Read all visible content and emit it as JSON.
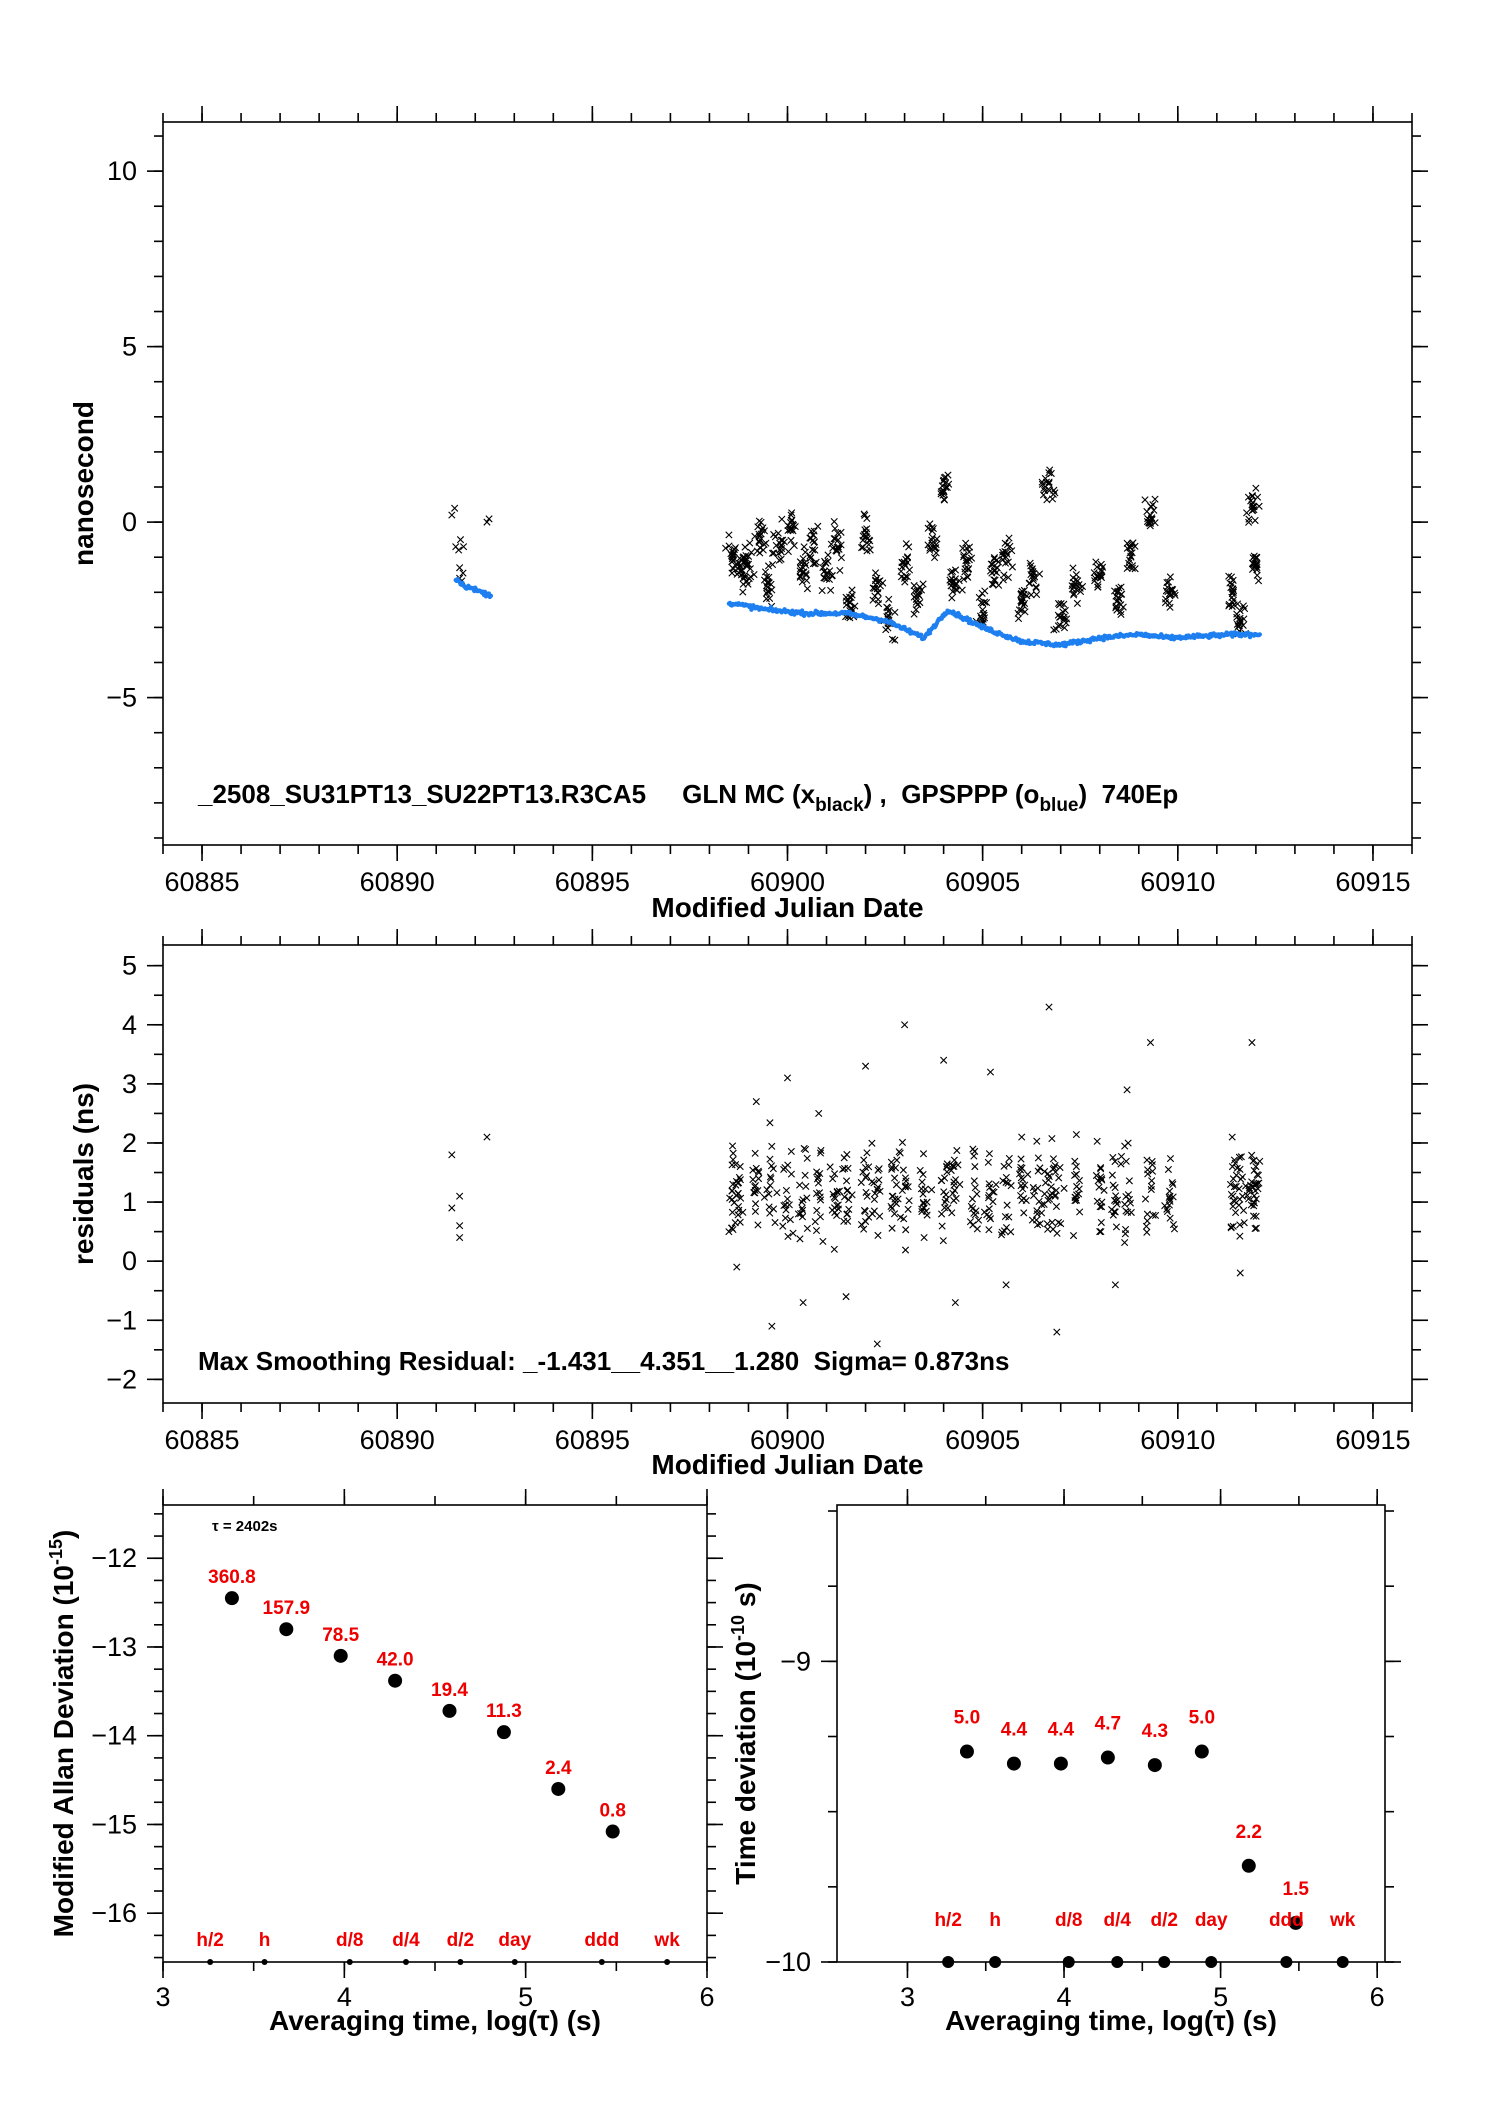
{
  "colors": {
    "black_marker": "#000000",
    "blue_marker": "#1e7ff0",
    "red_label": "#ee0000"
  },
  "chart_data": [
    {
      "id": "time-series",
      "type": "scatter",
      "xlabel": "Modified Julian Date",
      "ylabel": "nanosecond",
      "xlim": [
        60884,
        60916
      ],
      "ylim": [
        -9.2,
        11.4
      ],
      "xticks": [
        60885,
        60890,
        60895,
        60900,
        60905,
        60910,
        60915
      ],
      "yticks": [
        10,
        5,
        0,
        -5
      ],
      "annotation": {
        "prefix": "_2508_SU31PT13_SU22PT13.R3CA5     GLN MC (x",
        "sub1": "black",
        "mid": ") ,  GPSPPP (o",
        "sub2": "blue",
        "suffix": ")  740Ep"
      },
      "series": [
        {
          "name": "GLN MC",
          "marker": "x",
          "color": "#000000",
          "points": [
            [
              60891.4,
              0.2
            ],
            [
              60891.5,
              -0.7
            ],
            [
              60891.6,
              -1.3
            ],
            [
              60891.6,
              -1.6
            ],
            [
              60891.7,
              -0.7
            ],
            [
              60892.3,
              0.0
            ],
            [
              60898.6,
              -1.0
            ],
            [
              60898.8,
              -1.4
            ],
            [
              60899.0,
              -1.2
            ],
            [
              60899.3,
              -0.5
            ],
            [
              60899.5,
              -1.7
            ],
            [
              60899.8,
              -0.6
            ],
            [
              60900.1,
              -0.2
            ],
            [
              60900.4,
              -1.3
            ],
            [
              60900.7,
              -0.8
            ],
            [
              60901.0,
              -1.5
            ],
            [
              60901.3,
              -0.7
            ],
            [
              60901.6,
              -2.3
            ],
            [
              60902.0,
              -0.4
            ],
            [
              60902.3,
              -1.9
            ],
            [
              60902.6,
              -2.8
            ],
            [
              60903.0,
              -1.2
            ],
            [
              60903.3,
              -2.2
            ],
            [
              60903.7,
              -0.6
            ],
            [
              60904.0,
              0.9
            ],
            [
              60904.3,
              -1.8
            ],
            [
              60904.6,
              -1.1
            ],
            [
              60905.0,
              -2.5
            ],
            [
              60905.3,
              -1.4
            ],
            [
              60905.6,
              -1.0
            ],
            [
              60906.0,
              -2.3
            ],
            [
              60906.3,
              -1.6
            ],
            [
              60906.7,
              1.1
            ],
            [
              60907.0,
              -2.7
            ],
            [
              60907.4,
              -1.8
            ],
            [
              60908.0,
              -1.5
            ],
            [
              60908.5,
              -2.2
            ],
            [
              60908.8,
              -1.0
            ],
            [
              60909.3,
              0.2
            ],
            [
              60909.8,
              -2.1
            ],
            [
              60911.4,
              -2.0
            ],
            [
              60911.6,
              -2.8
            ],
            [
              60911.9,
              0.5
            ],
            [
              60912.0,
              -1.2
            ]
          ]
        },
        {
          "name": "GPSPPP",
          "marker": "o",
          "color": "#1e7ff0",
          "points": [
            [
              60891.5,
              -1.6
            ],
            [
              60891.7,
              -1.8
            ],
            [
              60892.4,
              -2.1
            ],
            [
              60898.5,
              -2.3
            ],
            [
              60899.5,
              -2.5
            ],
            [
              60900.5,
              -2.6
            ],
            [
              60901.5,
              -2.6
            ],
            [
              60902.5,
              -2.8
            ],
            [
              60903.5,
              -3.3
            ],
            [
              60904.1,
              -2.5
            ],
            [
              60905.0,
              -3.0
            ],
            [
              60906.0,
              -3.4
            ],
            [
              60907.0,
              -3.5
            ],
            [
              60908.0,
              -3.3
            ],
            [
              60909.0,
              -3.2
            ],
            [
              60909.8,
              -3.3
            ],
            [
              60911.5,
              -3.2
            ],
            [
              60912.1,
              -3.2
            ]
          ]
        }
      ]
    },
    {
      "id": "residuals",
      "type": "scatter",
      "xlabel": "Modified Julian Date",
      "ylabel": "residuals (ns)",
      "xlim": [
        60884,
        60916
      ],
      "ylim": [
        -2.4,
        5.35
      ],
      "xticks": [
        60885,
        60890,
        60895,
        60900,
        60905,
        60910,
        60915
      ],
      "yticks": [
        5,
        4,
        3,
        2,
        1,
        0,
        -1,
        -2
      ],
      "annotation": "Max Smoothing Residual: _-1.431__4.351__1.280  Sigma= 0.873ns",
      "series": [
        {
          "name": "",
          "marker": "x",
          "color": "#000000",
          "points": [
            [
              60891.4,
              1.8
            ],
            [
              60891.4,
              0.9
            ],
            [
              60891.6,
              1.1
            ],
            [
              60891.6,
              0.6
            ],
            [
              60891.6,
              0.4
            ],
            [
              60892.3,
              2.1
            ],
            [
              60898.6,
              1.3
            ],
            [
              60898.7,
              -0.1
            ],
            [
              60899.2,
              2.7
            ],
            [
              60899.6,
              -1.1
            ],
            [
              60900.0,
              3.1
            ],
            [
              60900.4,
              -0.7
            ],
            [
              60900.8,
              2.5
            ],
            [
              60901.2,
              0.2
            ],
            [
              60901.5,
              -0.6
            ],
            [
              60902.0,
              3.3
            ],
            [
              60902.3,
              -1.4
            ],
            [
              60902.7,
              1.1
            ],
            [
              60903.0,
              4.0
            ],
            [
              60903.5,
              0.4
            ],
            [
              60904.0,
              3.4
            ],
            [
              60904.3,
              -0.7
            ],
            [
              60904.8,
              1.6
            ],
            [
              60905.2,
              3.2
            ],
            [
              60905.6,
              -0.4
            ],
            [
              60906.0,
              2.1
            ],
            [
              60906.4,
              0.8
            ],
            [
              60906.7,
              4.3
            ],
            [
              60906.9,
              -1.2
            ],
            [
              60907.4,
              1.6
            ],
            [
              60908.0,
              0.5
            ],
            [
              60908.4,
              -0.4
            ],
            [
              60908.7,
              2.9
            ],
            [
              60909.3,
              3.7
            ],
            [
              60909.8,
              1.1
            ],
            [
              60911.4,
              1.6
            ],
            [
              60911.6,
              -0.2
            ],
            [
              60911.9,
              3.7
            ],
            [
              60912.0,
              1.6
            ]
          ]
        }
      ]
    },
    {
      "id": "mod-allan-deviation",
      "type": "scatter",
      "xlabel": "Averaging time, log(τ) (s)",
      "ylabel_main": "Modified Allan Deviation (10",
      "ylabel_sup": "-15",
      "ylabel_end": ")",
      "xlim": [
        3,
        6
      ],
      "ylim": [
        -16.55,
        -11.4
      ],
      "xticks": [
        3,
        4,
        5,
        6
      ],
      "yticks": [
        -12,
        -13,
        -14,
        -15,
        -16
      ],
      "tau_note": "τ = 2402s",
      "points": [
        [
          3.38,
          -12.45
        ],
        [
          3.68,
          -12.8
        ],
        [
          3.98,
          -13.1
        ],
        [
          4.28,
          -13.38
        ],
        [
          4.58,
          -13.72
        ],
        [
          4.88,
          -13.96
        ],
        [
          5.18,
          -14.6
        ],
        [
          5.48,
          -15.08
        ]
      ],
      "point_labels": [
        "360.8",
        "157.9",
        "78.5",
        "42.0",
        "19.4",
        "11.3",
        "2.4",
        "0.8"
      ],
      "markers": [
        {
          "x": 3.26,
          "label": "h/2"
        },
        {
          "x": 3.56,
          "label": "h"
        },
        {
          "x": 4.03,
          "label": "d/8"
        },
        {
          "x": 4.34,
          "label": "d/4"
        },
        {
          "x": 4.64,
          "label": "d/2"
        },
        {
          "x": 4.94,
          "label": "day"
        },
        {
          "x": 5.42,
          "label": "ddd"
        },
        {
          "x": 5.78,
          "label": "wk"
        }
      ]
    },
    {
      "id": "time-deviation",
      "type": "scatter",
      "xlabel": "Averaging time, log(τ) (s)",
      "ylabel_main": "Time deviation (10",
      "ylabel_sup": "-10",
      "ylabel_end": " s)",
      "xlim": [
        2.55,
        6.05
      ],
      "ylim": [
        -10.0,
        -8.48
      ],
      "xticks": [
        3,
        4,
        5,
        6
      ],
      "yticks": [
        -9,
        -10
      ],
      "points": [
        [
          3.38,
          -9.3
        ],
        [
          3.68,
          -9.34
        ],
        [
          3.98,
          -9.34
        ],
        [
          4.28,
          -9.32
        ],
        [
          4.58,
          -9.345
        ],
        [
          4.88,
          -9.3
        ],
        [
          5.18,
          -9.68
        ],
        [
          5.48,
          -9.87
        ]
      ],
      "point_labels": [
        "5.0",
        "4.4",
        "4.4",
        "4.7",
        "4.3",
        "5.0",
        "2.2",
        "1.5"
      ],
      "markers": [
        {
          "x": 3.26,
          "label": "h/2"
        },
        {
          "x": 3.56,
          "label": "h"
        },
        {
          "x": 4.03,
          "label": "d/8"
        },
        {
          "x": 4.34,
          "label": "d/4"
        },
        {
          "x": 4.64,
          "label": "d/2"
        },
        {
          "x": 4.94,
          "label": "day"
        },
        {
          "x": 5.42,
          "label": "ddd"
        },
        {
          "x": 5.78,
          "label": "wk"
        }
      ]
    }
  ]
}
